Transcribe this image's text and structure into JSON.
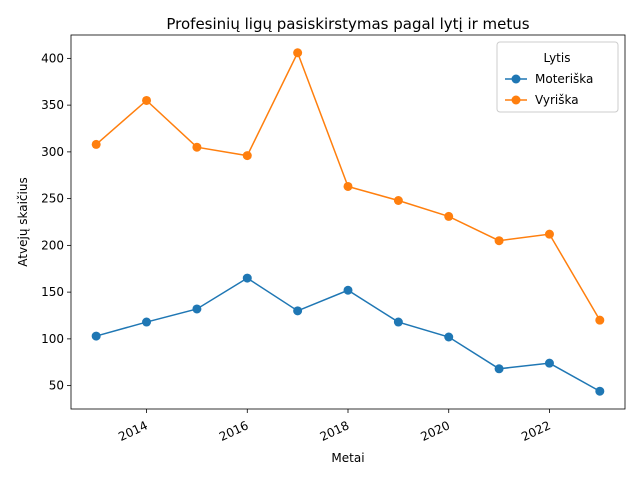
{
  "chart_data": {
    "type": "line",
    "title": "Profesinių ligų pasiskirstymas pagal lytį ir metus",
    "xlabel": "Metai",
    "ylabel": "Atvejų skaičius",
    "x": [
      2013,
      2014,
      2015,
      2016,
      2017,
      2018,
      2019,
      2020,
      2021,
      2022,
      2023
    ],
    "xticks": [
      "2014",
      "2016",
      "2018",
      "2020",
      "2022"
    ],
    "yticks": [
      "50",
      "100",
      "150",
      "200",
      "250",
      "300",
      "350",
      "400"
    ],
    "xlim": [
      2012.5,
      2023.5
    ],
    "ylim": [
      25,
      425
    ],
    "grid": false,
    "legend": {
      "title": "Lytis",
      "placement": "top-right"
    },
    "series": [
      {
        "name": "Moteriška",
        "color": "#1f77b4",
        "values": [
          103,
          118,
          132,
          165,
          130,
          152,
          118,
          102,
          68,
          74,
          44
        ]
      },
      {
        "name": "Vyriška",
        "color": "#ff7f0e",
        "values": [
          308,
          355,
          305,
          296,
          406,
          263,
          248,
          231,
          205,
          212,
          120
        ]
      }
    ]
  }
}
